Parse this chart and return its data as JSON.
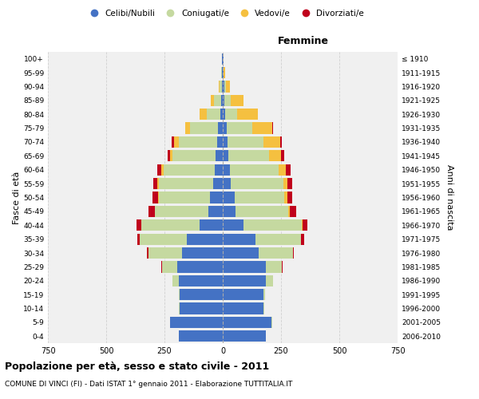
{
  "age_groups": [
    "0-4",
    "5-9",
    "10-14",
    "15-19",
    "20-24",
    "25-29",
    "30-34",
    "35-39",
    "40-44",
    "45-49",
    "50-54",
    "55-59",
    "60-64",
    "65-69",
    "70-74",
    "75-79",
    "80-84",
    "85-89",
    "90-94",
    "95-99",
    "100+"
  ],
  "birth_years": [
    "2006-2010",
    "2001-2005",
    "1996-2000",
    "1991-1995",
    "1986-1990",
    "1981-1985",
    "1976-1980",
    "1971-1975",
    "1966-1970",
    "1961-1965",
    "1956-1960",
    "1951-1955",
    "1946-1950",
    "1941-1945",
    "1936-1940",
    "1931-1935",
    "1926-1930",
    "1921-1925",
    "1916-1920",
    "1911-1915",
    "≤ 1910"
  ],
  "male_celibe": [
    190,
    225,
    185,
    185,
    190,
    195,
    175,
    155,
    100,
    60,
    55,
    40,
    35,
    30,
    25,
    20,
    10,
    8,
    5,
    3,
    2
  ],
  "male_coniugato": [
    0,
    1,
    2,
    5,
    25,
    65,
    145,
    200,
    250,
    230,
    220,
    235,
    220,
    185,
    165,
    120,
    60,
    30,
    8,
    3,
    1
  ],
  "male_vedovo": [
    0,
    0,
    0,
    0,
    0,
    0,
    0,
    0,
    1,
    2,
    3,
    5,
    8,
    12,
    20,
    20,
    30,
    15,
    4,
    1,
    0
  ],
  "male_divorziato": [
    0,
    0,
    0,
    0,
    1,
    3,
    5,
    10,
    18,
    28,
    22,
    18,
    18,
    10,
    8,
    2,
    1,
    0,
    0,
    0,
    0
  ],
  "female_celibe": [
    185,
    210,
    175,
    175,
    185,
    185,
    155,
    140,
    90,
    55,
    50,
    35,
    30,
    25,
    20,
    18,
    10,
    8,
    6,
    3,
    2
  ],
  "female_coniugato": [
    0,
    1,
    2,
    8,
    30,
    70,
    145,
    195,
    250,
    225,
    215,
    225,
    210,
    175,
    155,
    110,
    50,
    25,
    6,
    2,
    0
  ],
  "female_vedovo": [
    0,
    0,
    0,
    0,
    0,
    0,
    1,
    2,
    4,
    8,
    12,
    18,
    30,
    50,
    70,
    85,
    90,
    55,
    20,
    5,
    1
  ],
  "female_divorziato": [
    0,
    0,
    0,
    0,
    1,
    3,
    5,
    12,
    18,
    28,
    22,
    20,
    22,
    12,
    8,
    3,
    2,
    1,
    0,
    0,
    0
  ],
  "color_celibe": "#4472c4",
  "color_coniugato": "#c5d9a0",
  "color_vedovo": "#f5c040",
  "color_divorziato": "#c0001c",
  "title": "Popolazione per età, sesso e stato civile - 2011",
  "subtitle": "COMUNE DI VINCI (FI) - Dati ISTAT 1° gennaio 2011 - Elaborazione TUTTITALIA.IT",
  "xlabel_right": "Femmine",
  "ylabel_left": "Fasce di età",
  "ylabel_right": "Anni di nascita",
  "xlim": 750,
  "bg_color": "#f0f0f0",
  "grid_color": "#d0d0d0"
}
